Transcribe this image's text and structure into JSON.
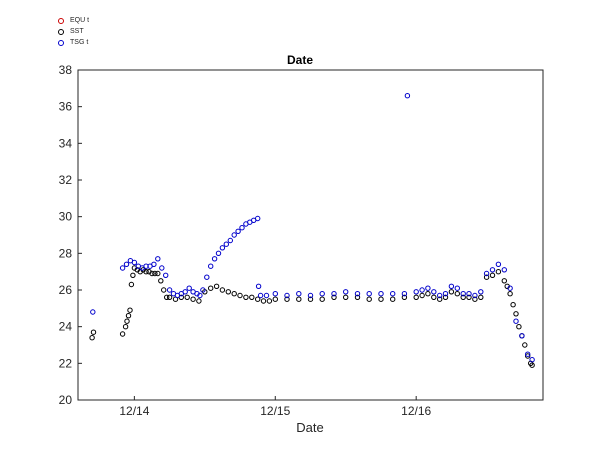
{
  "chart_data": {
    "type": "scatter",
    "title": "Date",
    "xlabel": "Date",
    "ylabel": "",
    "ylim": [
      20,
      38
    ],
    "xlim": [
      "2013-12-13 14:24",
      "2013-12-16 21:36"
    ],
    "grid": false,
    "legend_position": "top-left, outside axes",
    "y_ticks": [
      20,
      22,
      24,
      26,
      28,
      30,
      32,
      34,
      36,
      38
    ],
    "x_ticks": [
      {
        "value": "2013-12-14 00:00",
        "label": "12/14"
      },
      {
        "value": "2013-12-15 00:00",
        "label": "12/15"
      },
      {
        "value": "2013-12-16 00:00",
        "label": "12/16"
      }
    ],
    "series": [
      {
        "name": "EQU t",
        "color": "#cc0000",
        "marker": "open-circle",
        "points": []
      },
      {
        "name": "SST",
        "color": "#000000",
        "marker": "open-circle",
        "points": [
          [
            "2013-12-13 16:48",
            23.4
          ],
          [
            "2013-12-13 17:02",
            23.7
          ],
          [
            "2013-12-13 22:00",
            23.6
          ],
          [
            "2013-12-13 22:30",
            24.0
          ],
          [
            "2013-12-13 22:45",
            24.3
          ],
          [
            "2013-12-13 23:00",
            24.6
          ],
          [
            "2013-12-13 23:15",
            24.9
          ],
          [
            "2013-12-13 23:30",
            26.3
          ],
          [
            "2013-12-13 23:45",
            26.8
          ],
          [
            "2013-12-14 00:00",
            27.2
          ],
          [
            "2013-12-14 00:30",
            27.1
          ],
          [
            "2013-12-14 01:00",
            27.0
          ],
          [
            "2013-12-14 01:30",
            27.1
          ],
          [
            "2013-12-14 02:00",
            27.0
          ],
          [
            "2013-12-14 02:30",
            27.0
          ],
          [
            "2013-12-14 03:00",
            26.9
          ],
          [
            "2013-12-14 03:30",
            26.9
          ],
          [
            "2013-12-14 04:00",
            26.9
          ],
          [
            "2013-12-14 04:30",
            26.5
          ],
          [
            "2013-12-14 05:00",
            26.0
          ],
          [
            "2013-12-14 05:30",
            25.6
          ],
          [
            "2013-12-14 06:00",
            25.6
          ],
          [
            "2013-12-14 07:00",
            25.5
          ],
          [
            "2013-12-14 08:00",
            25.6
          ],
          [
            "2013-12-14 09:00",
            25.6
          ],
          [
            "2013-12-14 10:00",
            25.5
          ],
          [
            "2013-12-14 11:00",
            25.4
          ],
          [
            "2013-12-14 12:00",
            25.9
          ],
          [
            "2013-12-14 13:00",
            26.1
          ],
          [
            "2013-12-14 14:00",
            26.2
          ],
          [
            "2013-12-14 15:00",
            26.0
          ],
          [
            "2013-12-14 16:00",
            25.9
          ],
          [
            "2013-12-14 17:00",
            25.8
          ],
          [
            "2013-12-14 18:00",
            25.7
          ],
          [
            "2013-12-14 19:00",
            25.6
          ],
          [
            "2013-12-14 20:00",
            25.6
          ],
          [
            "2013-12-14 21:00",
            25.5
          ],
          [
            "2013-12-14 22:00",
            25.4
          ],
          [
            "2013-12-14 23:00",
            25.4
          ],
          [
            "2013-12-15 00:00",
            25.5
          ],
          [
            "2013-12-15 02:00",
            25.5
          ],
          [
            "2013-12-15 04:00",
            25.5
          ],
          [
            "2013-12-15 06:00",
            25.5
          ],
          [
            "2013-12-15 08:00",
            25.5
          ],
          [
            "2013-12-15 10:00",
            25.6
          ],
          [
            "2013-12-15 12:00",
            25.6
          ],
          [
            "2013-12-15 14:00",
            25.6
          ],
          [
            "2013-12-15 16:00",
            25.5
          ],
          [
            "2013-12-15 18:00",
            25.5
          ],
          [
            "2013-12-15 20:00",
            25.5
          ],
          [
            "2013-12-15 22:00",
            25.6
          ],
          [
            "2013-12-16 00:00",
            25.6
          ],
          [
            "2013-12-16 01:00",
            25.7
          ],
          [
            "2013-12-16 02:00",
            25.8
          ],
          [
            "2013-12-16 03:00",
            25.6
          ],
          [
            "2013-12-16 04:00",
            25.5
          ],
          [
            "2013-12-16 05:00",
            25.6
          ],
          [
            "2013-12-16 06:00",
            25.9
          ],
          [
            "2013-12-16 07:00",
            25.8
          ],
          [
            "2013-12-16 08:00",
            25.6
          ],
          [
            "2013-12-16 09:00",
            25.6
          ],
          [
            "2013-12-16 10:00",
            25.5
          ],
          [
            "2013-12-16 11:00",
            25.6
          ],
          [
            "2013-12-16 12:00",
            26.7
          ],
          [
            "2013-12-16 13:00",
            26.8
          ],
          [
            "2013-12-16 14:00",
            27.0
          ],
          [
            "2013-12-16 15:00",
            26.5
          ],
          [
            "2013-12-16 15:30",
            26.2
          ],
          [
            "2013-12-16 16:00",
            25.8
          ],
          [
            "2013-12-16 16:30",
            25.2
          ],
          [
            "2013-12-16 17:00",
            24.7
          ],
          [
            "2013-12-16 17:30",
            24.0
          ],
          [
            "2013-12-16 18:00",
            23.5
          ],
          [
            "2013-12-16 18:30",
            23.0
          ],
          [
            "2013-12-16 19:00",
            22.4
          ],
          [
            "2013-12-16 19:30",
            22.0
          ],
          [
            "2013-12-16 19:45",
            21.9
          ]
        ]
      },
      {
        "name": "TSG t",
        "color": "#0000cc",
        "marker": "open-circle",
        "points": [
          [
            "2013-12-13 16:55",
            24.8
          ],
          [
            "2013-12-13 22:00",
            27.2
          ],
          [
            "2013-12-13 22:40",
            27.4
          ],
          [
            "2013-12-13 23:20",
            27.6
          ],
          [
            "2013-12-14 00:00",
            27.5
          ],
          [
            "2013-12-14 00:40",
            27.3
          ],
          [
            "2013-12-14 01:20",
            27.2
          ],
          [
            "2013-12-14 02:00",
            27.3
          ],
          [
            "2013-12-14 02:40",
            27.3
          ],
          [
            "2013-12-14 03:20",
            27.4
          ],
          [
            "2013-12-14 04:00",
            27.7
          ],
          [
            "2013-12-14 04:40",
            27.2
          ],
          [
            "2013-12-14 05:20",
            26.8
          ],
          [
            "2013-12-14 06:00",
            26.0
          ],
          [
            "2013-12-14 06:40",
            25.8
          ],
          [
            "2013-12-14 07:20",
            25.7
          ],
          [
            "2013-12-14 08:00",
            25.8
          ],
          [
            "2013-12-14 08:40",
            25.9
          ],
          [
            "2013-12-14 09:20",
            26.1
          ],
          [
            "2013-12-14 10:00",
            25.9
          ],
          [
            "2013-12-14 10:40",
            25.8
          ],
          [
            "2013-12-14 11:10",
            25.7
          ],
          [
            "2013-12-14 11:40",
            26.0
          ],
          [
            "2013-12-14 12:20",
            26.7
          ],
          [
            "2013-12-14 13:00",
            27.3
          ],
          [
            "2013-12-14 13:40",
            27.7
          ],
          [
            "2013-12-14 14:20",
            28.0
          ],
          [
            "2013-12-14 15:00",
            28.3
          ],
          [
            "2013-12-14 15:40",
            28.5
          ],
          [
            "2013-12-14 16:20",
            28.7
          ],
          [
            "2013-12-14 17:00",
            29.0
          ],
          [
            "2013-12-14 17:40",
            29.2
          ],
          [
            "2013-12-14 18:20",
            29.4
          ],
          [
            "2013-12-14 19:00",
            29.6
          ],
          [
            "2013-12-14 19:40",
            29.7
          ],
          [
            "2013-12-14 20:20",
            29.8
          ],
          [
            "2013-12-14 21:00",
            29.9
          ],
          [
            "2013-12-14 21:10",
            26.2
          ],
          [
            "2013-12-14 21:30",
            25.7
          ],
          [
            "2013-12-14 22:30",
            25.7
          ],
          [
            "2013-12-15 00:00",
            25.8
          ],
          [
            "2013-12-15 02:00",
            25.7
          ],
          [
            "2013-12-15 04:00",
            25.8
          ],
          [
            "2013-12-15 06:00",
            25.7
          ],
          [
            "2013-12-15 08:00",
            25.8
          ],
          [
            "2013-12-15 10:00",
            25.8
          ],
          [
            "2013-12-15 12:00",
            25.9
          ],
          [
            "2013-12-15 14:00",
            25.8
          ],
          [
            "2013-12-15 16:00",
            25.8
          ],
          [
            "2013-12-15 18:00",
            25.8
          ],
          [
            "2013-12-15 20:00",
            25.8
          ],
          [
            "2013-12-15 22:00",
            25.8
          ],
          [
            "2013-12-15 22:30",
            36.6
          ],
          [
            "2013-12-16 00:00",
            25.9
          ],
          [
            "2013-12-16 01:00",
            26.0
          ],
          [
            "2013-12-16 02:00",
            26.1
          ],
          [
            "2013-12-16 03:00",
            25.9
          ],
          [
            "2013-12-16 04:00",
            25.7
          ],
          [
            "2013-12-16 05:00",
            25.8
          ],
          [
            "2013-12-16 06:00",
            26.2
          ],
          [
            "2013-12-16 07:00",
            26.1
          ],
          [
            "2013-12-16 08:00",
            25.8
          ],
          [
            "2013-12-16 09:00",
            25.8
          ],
          [
            "2013-12-16 10:00",
            25.7
          ],
          [
            "2013-12-16 11:00",
            25.9
          ],
          [
            "2013-12-16 12:00",
            26.9
          ],
          [
            "2013-12-16 13:00",
            27.1
          ],
          [
            "2013-12-16 14:00",
            27.4
          ],
          [
            "2013-12-16 15:00",
            27.1
          ],
          [
            "2013-12-16 16:00",
            26.1
          ],
          [
            "2013-12-16 17:00",
            24.3
          ],
          [
            "2013-12-16 18:00",
            23.5
          ],
          [
            "2013-12-16 19:00",
            22.5
          ],
          [
            "2013-12-16 19:45",
            22.2
          ]
        ]
      }
    ]
  }
}
